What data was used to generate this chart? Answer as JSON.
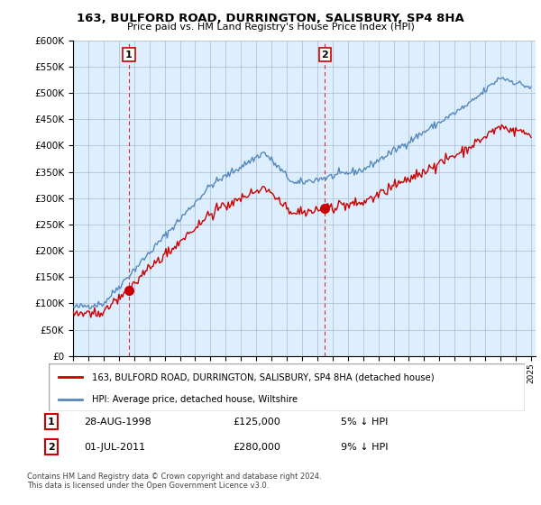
{
  "title": "163, BULFORD ROAD, DURRINGTON, SALISBURY, SP4 8HA",
  "subtitle": "Price paid vs. HM Land Registry's House Price Index (HPI)",
  "legend_line1": "163, BULFORD ROAD, DURRINGTON, SALISBURY, SP4 8HA (detached house)",
  "legend_line2": "HPI: Average price, detached house, Wiltshire",
  "transaction1_date": "28-AUG-1998",
  "transaction1_price": "£125,000",
  "transaction1_hpi": "5% ↓ HPI",
  "transaction2_date": "01-JUL-2011",
  "transaction2_price": "£280,000",
  "transaction2_hpi": "9% ↓ HPI",
  "footer": "Contains HM Land Registry data © Crown copyright and database right 2024.\nThis data is licensed under the Open Government Licence v3.0.",
  "red_color": "#cc0000",
  "blue_color": "#5588bb",
  "plot_bg_color": "#ddeeff",
  "background_color": "#ffffff",
  "grid_color": "#aabbcc",
  "ylim": [
    0,
    600000
  ],
  "yticks": [
    0,
    50000,
    100000,
    150000,
    200000,
    250000,
    300000,
    350000,
    400000,
    450000,
    500000,
    550000,
    600000
  ],
  "purchase1_year": 1998.66,
  "purchase1_value": 125000,
  "purchase2_year": 2011.5,
  "purchase2_value": 280000
}
